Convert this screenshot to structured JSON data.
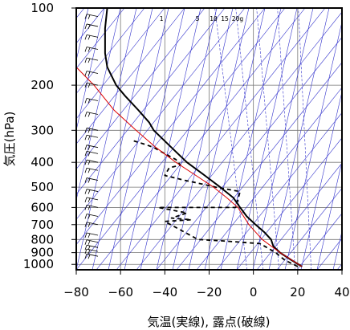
{
  "chart_data": {
    "type": "line",
    "title": "",
    "xlabel": "気温(実線), 露点(破線)",
    "ylabel": "気圧(hPa)",
    "xlim": [
      -80,
      40
    ],
    "ylim": [
      1050,
      100
    ],
    "y_scale": "log",
    "x_ticks": [
      -80,
      -60,
      -40,
      -20,
      0,
      20,
      40
    ],
    "x_tick_labels": [
      "−80",
      "−60",
      "−40",
      "−20",
      "0",
      "20",
      "40"
    ],
    "y_ticks": [
      100,
      200,
      300,
      400,
      500,
      600,
      700,
      800,
      900,
      1000
    ],
    "y_tick_labels": [
      "100",
      "200",
      "300",
      "400",
      "500",
      "600",
      "700",
      "800",
      "900",
      "1000"
    ],
    "mixing_ratio_labels": [
      "1",
      "5",
      "10",
      "15",
      "20g"
    ],
    "grid": true,
    "colors": {
      "temperature": "#000000",
      "dewpoint": "#000000",
      "dry_adiabats": "#3333cc",
      "isotherms": "#3333cc",
      "parcel_path": "#dd0000",
      "wind_barbs": "#000000"
    },
    "series": [
      {
        "x": [
          22,
          17,
          12,
          9,
          8,
          5,
          1,
          -3,
          -6,
          -9,
          -15,
          -22,
          -30,
          -37,
          -45,
          -47,
          -52,
          -58,
          -62,
          -66,
          -67,
          -67,
          -66
        ],
        "y": [
          1020,
          960,
          900,
          850,
          800,
          750,
          700,
          650,
          600,
          550,
          500,
          450,
          400,
          350,
          300,
          280,
          250,
          220,
          200,
          170,
          150,
          120,
          100
        ]
      },
      {
        "x": [
          20,
          14,
          10,
          3,
          -14,
          -25,
          -40,
          -28,
          -37,
          -30,
          -43,
          -35,
          -20,
          -8,
          -6,
          -17,
          -26,
          -31,
          -40,
          -38,
          -33,
          -35,
          -40,
          -45,
          -49,
          -54
        ],
        "y": [
          1020,
          960,
          900,
          830,
          810,
          800,
          680,
          670,
          660,
          630,
          600,
          600,
          600,
          600,
          520,
          500,
          480,
          470,
          450,
          420,
          410,
          390,
          370,
          350,
          340,
          330
        ]
      },
      {
        "x": [
          22,
          12,
          4,
          -2,
          -7,
          -12,
          -18,
          -26,
          -35,
          -44,
          -53,
          -63,
          -72,
          -80
        ],
        "y": [
          1020,
          900,
          800,
          700,
          600,
          550,
          500,
          450,
          400,
          350,
          300,
          250,
          200,
          170
        ]
      }
    ]
  }
}
